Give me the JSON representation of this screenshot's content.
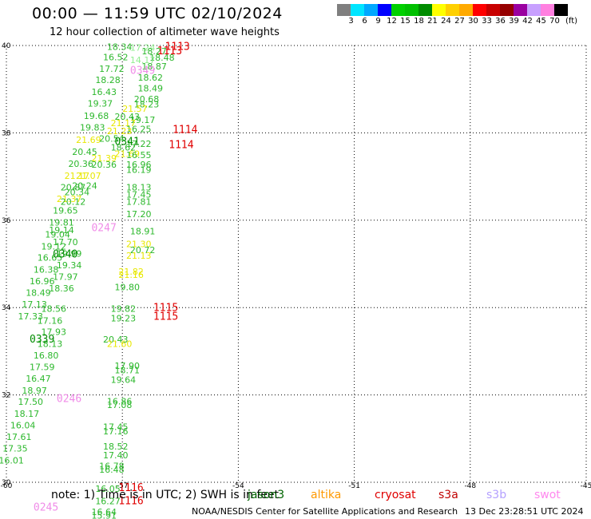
{
  "header": {
    "title": "00:00 — 11:59 UTC 02/10/2024",
    "subtitle": "12 hour collection of altimeter wave heights"
  },
  "colorbar": {
    "colors": [
      "#7f7f7f",
      "#00e5ff",
      "#00a8ff",
      "#0000ff",
      "#00d000",
      "#00c000",
      "#008c00",
      "#ffff00",
      "#ffd000",
      "#ffaa00",
      "#ff0000",
      "#c80000",
      "#960000",
      "#9a00a0",
      "#c8a0ff",
      "#ff80e0",
      "#000000"
    ],
    "labels": [
      "3",
      "6",
      "9",
      "12",
      "15",
      "18",
      "21",
      "24",
      "27",
      "30",
      "33",
      "36",
      "39",
      "42",
      "45",
      "70"
    ],
    "unit": "(ft)"
  },
  "chart_data": {
    "type": "scatter",
    "title": "00:00 — 11:59 UTC 02/10/2024",
    "subtitle": "12 hour collection of altimeter wave heights",
    "xlim": [
      -60,
      -45
    ],
    "ylim": [
      30,
      40
    ],
    "x_ticks": [
      "-60",
      "-57",
      "-54",
      "-51",
      "-48",
      "-45"
    ],
    "y_ticks": [
      "30",
      "32",
      "34",
      "36",
      "38",
      "40"
    ],
    "grid": "dotted",
    "labels": [
      {
        "x": -57.4,
        "y": 39.9,
        "t": "18.34",
        "c": "#2db82d"
      },
      {
        "x": -57.5,
        "y": 39.66,
        "t": "16.52",
        "c": "#2db82d"
      },
      {
        "x": -57.6,
        "y": 39.4,
        "t": "17.72",
        "c": "#2db82d"
      },
      {
        "x": -57.7,
        "y": 39.14,
        "t": "18.28",
        "c": "#2db82d"
      },
      {
        "x": -57.8,
        "y": 38.87,
        "t": "16.43",
        "c": "#2db82d"
      },
      {
        "x": -57.9,
        "y": 38.6,
        "t": "19.37",
        "c": "#2db82d"
      },
      {
        "x": -58.0,
        "y": 38.32,
        "t": "19.68",
        "c": "#2db82d"
      },
      {
        "x": -58.1,
        "y": 38.05,
        "t": "19.83",
        "c": "#2db82d"
      },
      {
        "x": -58.2,
        "y": 37.77,
        "t": "21.69",
        "c": "#e8e800"
      },
      {
        "x": -57.3,
        "y": 37.6,
        "t": "18.62",
        "c": "#2db82d"
      },
      {
        "x": -58.3,
        "y": 37.5,
        "t": "20.45",
        "c": "#2db82d"
      },
      {
        "x": -57.8,
        "y": 37.35,
        "t": "21.39",
        "c": "#e8e800"
      },
      {
        "x": -58.4,
        "y": 37.22,
        "t": "20.36",
        "c": "#2db82d"
      },
      {
        "x": -57.8,
        "y": 37.2,
        "t": "20.36",
        "c": "#2db82d"
      },
      {
        "x": -58.5,
        "y": 36.95,
        "t": "21.17",
        "c": "#e8e800"
      },
      {
        "x": -58.2,
        "y": 36.95,
        "t": "21.07",
        "c": "#e8e800"
      },
      {
        "x": -58.3,
        "y": 36.72,
        "t": "20.24",
        "c": "#2db82d"
      },
      {
        "x": -58.6,
        "y": 36.68,
        "t": "20.87",
        "c": "#2db82d"
      },
      {
        "x": -58.5,
        "y": 36.57,
        "t": "20.34",
        "c": "#2db82d"
      },
      {
        "x": -58.7,
        "y": 36.42,
        "t": "21.37",
        "c": "#e8e800"
      },
      {
        "x": -58.6,
        "y": 36.35,
        "t": "20.12",
        "c": "#2db82d"
      },
      {
        "x": -58.8,
        "y": 36.15,
        "t": "19.65",
        "c": "#2db82d"
      },
      {
        "x": -58.9,
        "y": 35.88,
        "t": "19.81",
        "c": "#2db82d"
      },
      {
        "x": -59.0,
        "y": 35.6,
        "t": "19.04",
        "c": "#2db82d"
      },
      {
        "x": -59.1,
        "y": 35.33,
        "t": "19.12",
        "c": "#2db82d"
      },
      {
        "x": -59.2,
        "y": 35.07,
        "t": "16.65",
        "c": "#2db82d"
      },
      {
        "x": -59.3,
        "y": 34.8,
        "t": "16.38",
        "c": "#2db82d"
      },
      {
        "x": -59.4,
        "y": 34.53,
        "t": "16.96",
        "c": "#2db82d"
      },
      {
        "x": -59.5,
        "y": 34.27,
        "t": "18.49",
        "c": "#2db82d"
      },
      {
        "x": -59.6,
        "y": 34.0,
        "t": "17.13",
        "c": "#2db82d"
      },
      {
        "x": -59.7,
        "y": 33.73,
        "t": "17.33",
        "c": "#2db82d"
      },
      {
        "x": -58.9,
        "y": 35.7,
        "t": "19.14",
        "c": "#2db82d"
      },
      {
        "x": -58.8,
        "y": 35.43,
        "t": "17.70",
        "c": "#2db82d"
      },
      {
        "x": -58.7,
        "y": 35.16,
        "t": "19.99",
        "c": "#2db82d"
      },
      {
        "x": -58.7,
        "y": 34.9,
        "t": "19.34",
        "c": "#2db82d"
      },
      {
        "x": -58.8,
        "y": 34.63,
        "t": "17.97",
        "c": "#2db82d"
      },
      {
        "x": -58.9,
        "y": 34.37,
        "t": "18.36",
        "c": "#2db82d"
      },
      {
        "x": -59.1,
        "y": 33.9,
        "t": "18.56",
        "c": "#2db82d"
      },
      {
        "x": -59.2,
        "y": 33.63,
        "t": "17.16",
        "c": "#2db82d"
      },
      {
        "x": -59.1,
        "y": 33.37,
        "t": "17.93",
        "c": "#2db82d"
      },
      {
        "x": -59.2,
        "y": 33.1,
        "t": "18.13",
        "c": "#2db82d"
      },
      {
        "x": -59.3,
        "y": 32.83,
        "t": "16.80",
        "c": "#2db82d"
      },
      {
        "x": -59.4,
        "y": 32.57,
        "t": "17.59",
        "c": "#2db82d"
      },
      {
        "x": -59.5,
        "y": 32.3,
        "t": "16.47",
        "c": "#2db82d"
      },
      {
        "x": -59.6,
        "y": 32.03,
        "t": "18.97",
        "c": "#2db82d"
      },
      {
        "x": -59.7,
        "y": 31.77,
        "t": "17.50",
        "c": "#2db82d"
      },
      {
        "x": -59.8,
        "y": 31.5,
        "t": "18.17",
        "c": "#2db82d"
      },
      {
        "x": -59.9,
        "y": 31.23,
        "t": "16.04",
        "c": "#2db82d"
      },
      {
        "x": -60.0,
        "y": 30.97,
        "t": "17.61",
        "c": "#2db82d"
      },
      {
        "x": -60.1,
        "y": 30.7,
        "t": "17.35",
        "c": "#2db82d"
      },
      {
        "x": -60.2,
        "y": 30.43,
        "t": "16.01",
        "c": "#2db82d"
      },
      {
        "x": -56.8,
        "y": 39.88,
        "t": "17.24",
        "c": "#90ee90"
      },
      {
        "x": -56.5,
        "y": 39.8,
        "t": "18.27",
        "c": "#2db82d"
      },
      {
        "x": -56.3,
        "y": 39.65,
        "t": "18.48",
        "c": "#2db82d"
      },
      {
        "x": -56.8,
        "y": 39.6,
        "t": "14.17",
        "c": "#90ee90"
      },
      {
        "x": -56.5,
        "y": 39.45,
        "t": "18.87",
        "c": "#2db82d"
      },
      {
        "x": -56.6,
        "y": 39.2,
        "t": "18.62",
        "c": "#2db82d"
      },
      {
        "x": -56.6,
        "y": 38.95,
        "t": "18.49",
        "c": "#2db82d"
      },
      {
        "x": -56.7,
        "y": 38.7,
        "t": "20.68",
        "c": "#2db82d"
      },
      {
        "x": -56.7,
        "y": 38.58,
        "t": "18.23",
        "c": "#2db82d"
      },
      {
        "x": -57.0,
        "y": 38.48,
        "t": "21.57",
        "c": "#e8e800"
      },
      {
        "x": -57.2,
        "y": 38.3,
        "t": "20.43",
        "c": "#2db82d"
      },
      {
        "x": -56.8,
        "y": 38.23,
        "t": "19.17",
        "c": "#2db82d"
      },
      {
        "x": -57.3,
        "y": 38.15,
        "t": "21.17",
        "c": "#e8e800"
      },
      {
        "x": -56.9,
        "y": 38.02,
        "t": "16.25",
        "c": "#2db82d"
      },
      {
        "x": -57.4,
        "y": 37.97,
        "t": "21.23",
        "c": "#e8e800"
      },
      {
        "x": -57.6,
        "y": 37.8,
        "t": "20.54",
        "c": "#2db82d"
      },
      {
        "x": -56.9,
        "y": 37.68,
        "t": "17.22",
        "c": "#2db82d"
      },
      {
        "x": -57.2,
        "y": 37.45,
        "t": "21.69",
        "c": "#e8e800"
      },
      {
        "x": -56.9,
        "y": 37.42,
        "t": "16.55",
        "c": "#2db82d"
      },
      {
        "x": -56.9,
        "y": 37.2,
        "t": "16.96",
        "c": "#2db82d"
      },
      {
        "x": -56.9,
        "y": 37.08,
        "t": "16.19",
        "c": "#2db82d"
      },
      {
        "x": -56.9,
        "y": 36.68,
        "t": "18.13",
        "c": "#2db82d"
      },
      {
        "x": -56.9,
        "y": 36.52,
        "t": "17.45",
        "c": "#2db82d"
      },
      {
        "x": -56.9,
        "y": 36.35,
        "t": "17.81",
        "c": "#2db82d"
      },
      {
        "x": -56.9,
        "y": 36.07,
        "t": "17.20",
        "c": "#2db82d"
      },
      {
        "x": -56.8,
        "y": 35.68,
        "t": "18.91",
        "c": "#2db82d"
      },
      {
        "x": -56.9,
        "y": 35.38,
        "t": "21.30",
        "c": "#e8e800"
      },
      {
        "x": -56.8,
        "y": 35.25,
        "t": "20.72",
        "c": "#2db82d"
      },
      {
        "x": -56.9,
        "y": 35.12,
        "t": "21.13",
        "c": "#e8e800"
      },
      {
        "x": -57.1,
        "y": 34.75,
        "t": "21.82",
        "c": "#e8e800"
      },
      {
        "x": -57.1,
        "y": 34.68,
        "t": "21.16",
        "c": "#e8e800"
      },
      {
        "x": -57.2,
        "y": 34.4,
        "t": "19.80",
        "c": "#2db82d"
      },
      {
        "x": -57.3,
        "y": 33.9,
        "t": "19.82",
        "c": "#2db82d"
      },
      {
        "x": -57.3,
        "y": 33.68,
        "t": "19.23",
        "c": "#2db82d"
      },
      {
        "x": -57.5,
        "y": 33.2,
        "t": "20.43",
        "c": "#2db82d"
      },
      {
        "x": -57.4,
        "y": 33.1,
        "t": "21.60",
        "c": "#e8e800"
      },
      {
        "x": -57.2,
        "y": 32.6,
        "t": "17.90",
        "c": "#2db82d"
      },
      {
        "x": -57.2,
        "y": 32.5,
        "t": "18.71",
        "c": "#2db82d"
      },
      {
        "x": -57.3,
        "y": 32.28,
        "t": "19.64",
        "c": "#2db82d"
      },
      {
        "x": -57.4,
        "y": 31.78,
        "t": "16.86",
        "c": "#2db82d"
      },
      {
        "x": -57.4,
        "y": 31.7,
        "t": "17.08",
        "c": "#2db82d"
      },
      {
        "x": -57.5,
        "y": 31.2,
        "t": "17.45",
        "c": "#2db82d"
      },
      {
        "x": -57.5,
        "y": 31.1,
        "t": "17.16",
        "c": "#2db82d"
      },
      {
        "x": -57.5,
        "y": 30.75,
        "t": "18.52",
        "c": "#2db82d"
      },
      {
        "x": -57.5,
        "y": 30.55,
        "t": "17.40",
        "c": "#2db82d"
      },
      {
        "x": -57.6,
        "y": 30.3,
        "t": "16.78",
        "c": "#2db82d"
      },
      {
        "x": -57.6,
        "y": 30.22,
        "t": "16.48",
        "c": "#2db82d"
      },
      {
        "x": -57.7,
        "y": 29.78,
        "t": "16.05",
        "c": "#2db82d"
      },
      {
        "x": -57.7,
        "y": 29.5,
        "t": "16.27",
        "c": "#2db82d"
      },
      {
        "x": -57.8,
        "y": 29.25,
        "t": "16.64",
        "c": "#2db82d"
      },
      {
        "x": -57.8,
        "y": 29.17,
        "t": "15.91",
        "c": "#2db82d"
      }
    ],
    "time_labels": [
      {
        "x": -55.9,
        "y": 39.9,
        "t": "1113",
        "c": "#e00000"
      },
      {
        "x": -56.1,
        "y": 39.8,
        "t": "1113",
        "c": "#e00000"
      },
      {
        "x": -56.8,
        "y": 39.35,
        "t": "0349",
        "c": "#f08ce8"
      },
      {
        "x": -55.7,
        "y": 38.0,
        "t": "1114",
        "c": "#e00000"
      },
      {
        "x": -55.8,
        "y": 37.65,
        "t": "1114",
        "c": "#e00000"
      },
      {
        "x": -57.2,
        "y": 37.72,
        "t": "0341",
        "c": "#008c00"
      },
      {
        "x": -57.8,
        "y": 35.75,
        "t": "0247",
        "c": "#f08ce8"
      },
      {
        "x": -58.8,
        "y": 35.15,
        "t": "0340",
        "c": "#008c00"
      },
      {
        "x": -56.2,
        "y": 33.92,
        "t": "1115",
        "c": "#e00000"
      },
      {
        "x": -56.2,
        "y": 33.72,
        "t": "1115",
        "c": "#e00000"
      },
      {
        "x": -59.4,
        "y": 33.2,
        "t": "0339",
        "c": "#008c00"
      },
      {
        "x": -58.7,
        "y": 31.84,
        "t": "0246",
        "c": "#f08ce8"
      },
      {
        "x": -57.1,
        "y": 29.8,
        "t": "1116",
        "c": "#e00000"
      },
      {
        "x": -57.1,
        "y": 29.5,
        "t": "1116",
        "c": "#e00000"
      },
      {
        "x": -59.3,
        "y": 29.35,
        "t": "0245",
        "c": "#f08ce8"
      }
    ]
  },
  "footer": {
    "note": "note:  1) Time is in UTC; 2) SWH is in feet",
    "credit": "NOAA/NESDIS Center for Satellite Applications and Research",
    "date": "13 Dec 23:28:51 UTC 2024"
  },
  "legend": [
    {
      "label": "jason3",
      "color": "#006400"
    },
    {
      "label": "altika",
      "color": "#ff9900"
    },
    {
      "label": "cryosat",
      "color": "#e00000"
    },
    {
      "label": "s3a",
      "color": "#c00000"
    },
    {
      "label": "s3b",
      "color": "#b4a0ff"
    },
    {
      "label": "swot",
      "color": "#ff88ee"
    }
  ]
}
